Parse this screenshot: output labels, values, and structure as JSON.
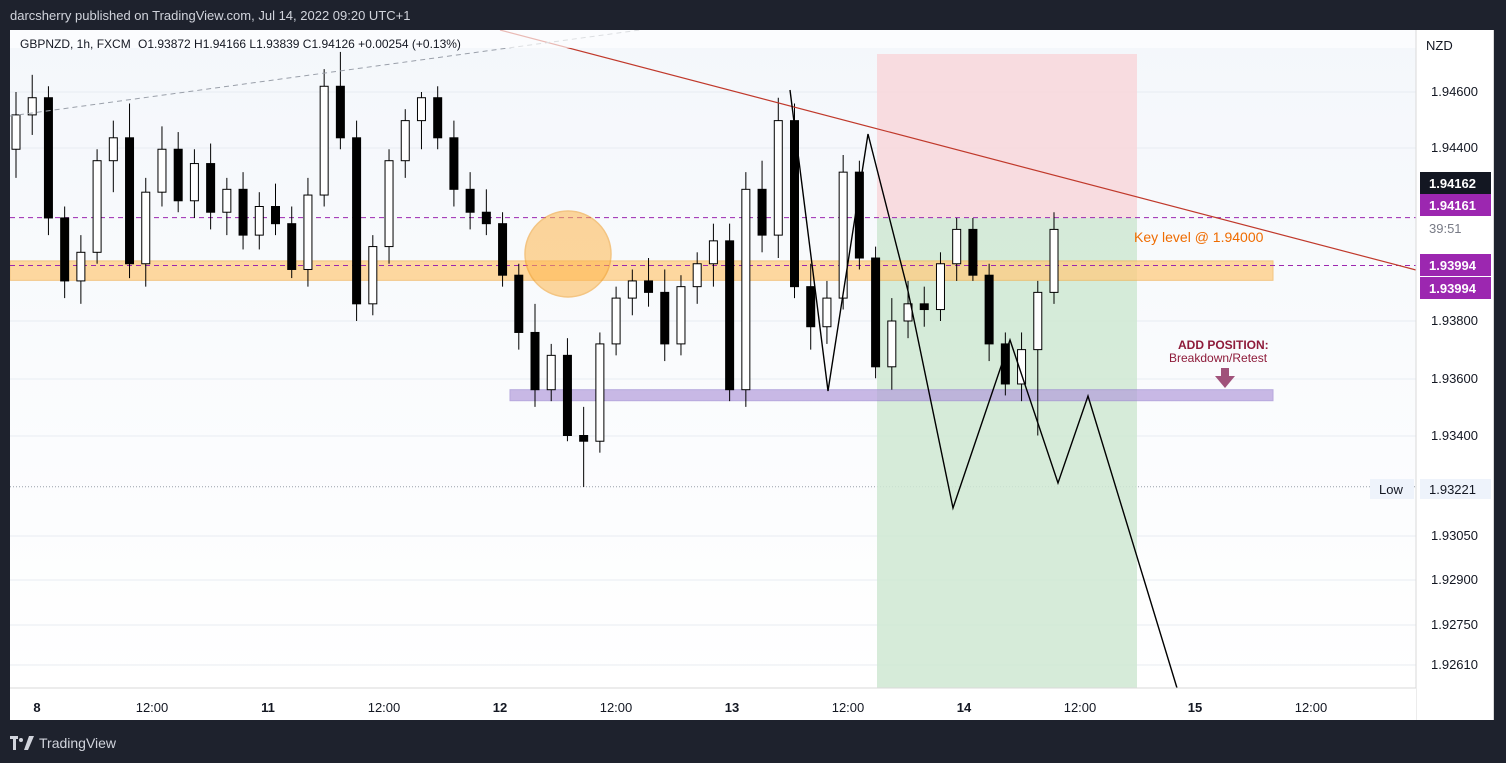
{
  "published_by": "darcsherry published on TradingView.com, Jul 14, 2022 09:20 UTC+1",
  "symbol_info": "GBPNZD, 1h, FXCM",
  "ohlc_text": "O1.93872  H1.94166  L1.93839  C1.94126  +0.00254 (+0.13%)",
  "currency": "NZD",
  "brand": "TradingView",
  "annotations": {
    "key_level": "Key level @ 1.94000",
    "add_position_title": "ADD POSITION:",
    "add_position_sub": "Breakdown/Retest"
  },
  "price_tags": {
    "current": "1.94162",
    "purple_top": "1.94161",
    "countdown": "39:51",
    "purple_low_1": "1.93994",
    "purple_low_2": "1.93994",
    "low_label": "Low",
    "low_value": "1.93221"
  },
  "colors": {
    "up_candle": "#ffffff",
    "down_candle": "#000000",
    "key_zone": "#ffcc80",
    "retest_zone": "#b39ddb",
    "stop_zone": "#f8d7da",
    "target_zone": "#cfe7d2",
    "trendline": "#c0392b",
    "purple_tag": "#9c27b0"
  },
  "chart_data": {
    "type": "candlestick",
    "y_ticks": [
      "1.94600",
      "1.94400",
      "1.93800",
      "1.93600",
      "1.93400",
      "1.93050",
      "1.92900",
      "1.92750",
      "1.92610"
    ],
    "x_ticks": [
      "8",
      "12:00",
      "11",
      "12:00",
      "12",
      "12:00",
      "13",
      "12:00",
      "14",
      "12:00",
      "15",
      "12:00"
    ],
    "candles": [
      [
        1.944,
        1.946,
        1.943,
        1.9452
      ],
      [
        1.9452,
        1.9466,
        1.9445,
        1.9458
      ],
      [
        1.9458,
        1.9462,
        1.941,
        1.9416
      ],
      [
        1.9416,
        1.942,
        1.9388,
        1.9394
      ],
      [
        1.9394,
        1.941,
        1.9386,
        1.9404
      ],
      [
        1.9404,
        1.944,
        1.94,
        1.9436
      ],
      [
        1.9436,
        1.945,
        1.9425,
        1.9444
      ],
      [
        1.9444,
        1.9456,
        1.9395,
        1.94
      ],
      [
        1.94,
        1.943,
        1.9392,
        1.9425
      ],
      [
        1.9425,
        1.9448,
        1.942,
        1.944
      ],
      [
        1.944,
        1.9446,
        1.9418,
        1.9422
      ],
      [
        1.9422,
        1.944,
        1.9416,
        1.9435
      ],
      [
        1.9435,
        1.9442,
        1.9412,
        1.9418
      ],
      [
        1.9418,
        1.943,
        1.941,
        1.9426
      ],
      [
        1.9426,
        1.9432,
        1.9405,
        1.941
      ],
      [
        1.941,
        1.9425,
        1.9405,
        1.942
      ],
      [
        1.942,
        1.9428,
        1.941,
        1.9414
      ],
      [
        1.9414,
        1.942,
        1.9395,
        1.9398
      ],
      [
        1.9398,
        1.943,
        1.9392,
        1.9424
      ],
      [
        1.9424,
        1.9468,
        1.942,
        1.9462
      ],
      [
        1.9462,
        1.9474,
        1.944,
        1.9444
      ],
      [
        1.9444,
        1.945,
        1.938,
        1.9386
      ],
      [
        1.9386,
        1.941,
        1.9382,
        1.9406
      ],
      [
        1.9406,
        1.944,
        1.94,
        1.9436
      ],
      [
        1.9436,
        1.9454,
        1.943,
        1.945
      ],
      [
        1.945,
        1.946,
        1.944,
        1.9458
      ],
      [
        1.9458,
        1.9462,
        1.944,
        1.9444
      ],
      [
        1.9444,
        1.945,
        1.942,
        1.9426
      ],
      [
        1.9426,
        1.9432,
        1.9412,
        1.9418
      ],
      [
        1.9418,
        1.9426,
        1.941,
        1.9414
      ],
      [
        1.9414,
        1.9418,
        1.9392,
        1.9396
      ],
      [
        1.9396,
        1.94,
        1.937,
        1.9376
      ],
      [
        1.9376,
        1.9386,
        1.935,
        1.9356
      ],
      [
        1.9356,
        1.9372,
        1.9352,
        1.9368
      ],
      [
        1.9368,
        1.9374,
        1.9338,
        1.934
      ],
      [
        1.934,
        1.935,
        1.9322,
        1.9338
      ],
      [
        1.9338,
        1.9376,
        1.9334,
        1.9372
      ],
      [
        1.9372,
        1.9392,
        1.9368,
        1.9388
      ],
      [
        1.9388,
        1.9398,
        1.9382,
        1.9394
      ],
      [
        1.9394,
        1.9402,
        1.9385,
        1.939
      ],
      [
        1.939,
        1.9398,
        1.9366,
        1.9372
      ],
      [
        1.9372,
        1.9396,
        1.9368,
        1.9392
      ],
      [
        1.9392,
        1.9404,
        1.9386,
        1.94
      ],
      [
        1.94,
        1.9414,
        1.9392,
        1.9408
      ],
      [
        1.9408,
        1.9414,
        1.9352,
        1.9356
      ],
      [
        1.9356,
        1.9432,
        1.935,
        1.9426
      ],
      [
        1.9426,
        1.9436,
        1.9404,
        1.941
      ],
      [
        1.941,
        1.9458,
        1.9402,
        1.945
      ],
      [
        1.945,
        1.9456,
        1.9388,
        1.9392
      ],
      [
        1.9392,
        1.94,
        1.937,
        1.9378
      ],
      [
        1.9378,
        1.9394,
        1.9372,
        1.9388
      ],
      [
        1.9388,
        1.9438,
        1.9384,
        1.9432
      ],
      [
        1.9432,
        1.9436,
        1.9398,
        1.9402
      ],
      [
        1.9402,
        1.9406,
        1.936,
        1.9364
      ],
      [
        1.9364,
        1.9388,
        1.9356,
        1.938
      ],
      [
        1.938,
        1.9394,
        1.9374,
        1.9386
      ],
      [
        1.9386,
        1.9392,
        1.9378,
        1.9384
      ],
      [
        1.9384,
        1.9404,
        1.938,
        1.94
      ],
      [
        1.94,
        1.9416,
        1.9394,
        1.9412
      ],
      [
        1.9412,
        1.9416,
        1.9394,
        1.9396
      ],
      [
        1.9396,
        1.94,
        1.9366,
        1.9372
      ],
      [
        1.9372,
        1.9376,
        1.9354,
        1.9358
      ],
      [
        1.9358,
        1.9376,
        1.9352,
        1.937
      ],
      [
        1.937,
        1.9394,
        1.934,
        1.939
      ],
      [
        1.939,
        1.9418,
        1.9386,
        1.9412
      ]
    ],
    "zones": {
      "key_level": [
        1.9397,
        1.9401
      ],
      "retest": [
        1.9353,
        1.9356
      ],
      "stop": [
        1.9416,
        1.9469
      ],
      "target": [
        1.9251,
        1.9416
      ],
      "dashed_levels": [
        1.94161,
        1.93994
      ]
    }
  }
}
